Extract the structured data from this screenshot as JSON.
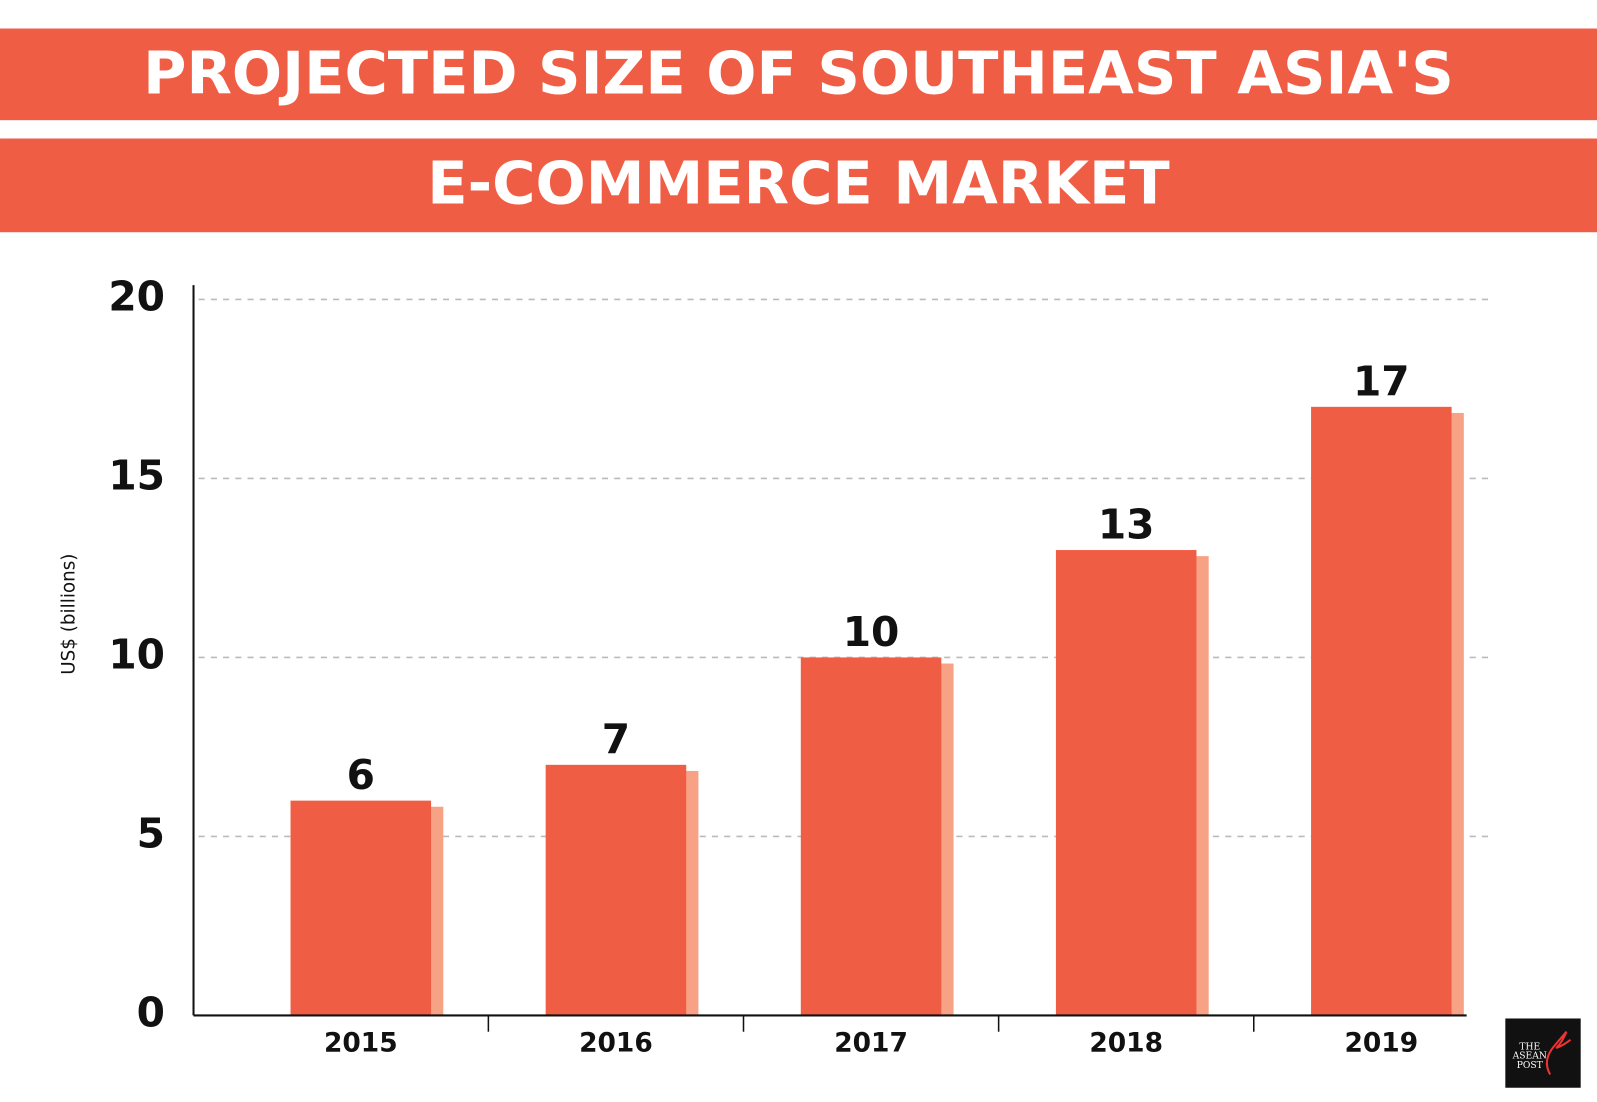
{
  "chart_data": {
    "type": "bar",
    "title": [
      "PROJECTED SIZE OF SOUTHEAST ASIA'S",
      "E-COMMERCE MARKET"
    ],
    "y_label": "US$ (billions)",
    "categories": [
      "2015",
      "2016",
      "2017",
      "2018",
      "2019"
    ],
    "values": [
      6,
      7,
      10,
      13,
      17
    ],
    "color": "#f05d45",
    "ylim": [
      0,
      20
    ],
    "yticks": [
      0,
      5,
      10,
      15,
      20
    ],
    "grid": true,
    "logo": [
      "THE",
      "ASEAN",
      "POST"
    ]
  }
}
